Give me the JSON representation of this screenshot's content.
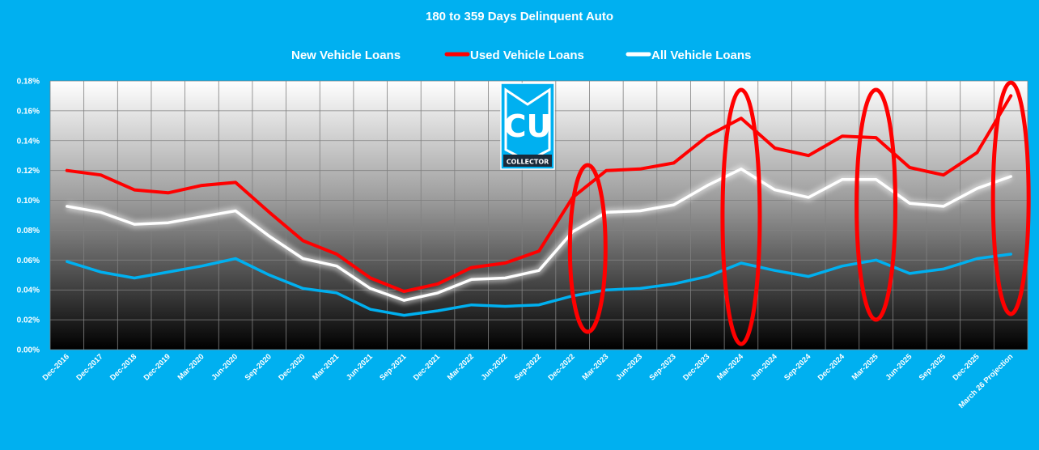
{
  "chart_data": {
    "type": "line",
    "title": "180 to 359 Days Delinquent Auto",
    "categories": [
      "Dec-2016",
      "Dec-2017",
      "Dec-2018",
      "Dec-2019",
      "Mar-2020",
      "Jun-2020",
      "Sep-2020",
      "Dec-2020",
      "Mar-2021",
      "Jun-2021",
      "Sep-2021",
      "Dec-2021",
      "Mar-2022",
      "Jun-2022",
      "Sep-2022",
      "Dec-2022",
      "Mar-2023",
      "Jun-2023",
      "Sep-2023",
      "Dec-2023",
      "Mar-2024",
      "Jun-2024",
      "Sep-2024",
      "Dec-2024",
      "Mar-2025",
      "Jun-2025",
      "Sep-2025",
      "Dec-2025",
      "March 26 Projection"
    ],
    "series": [
      {
        "name": "New Vehicle Loans",
        "color": "#00b0f0",
        "values": [
          0.059,
          0.052,
          0.048,
          0.052,
          0.056,
          0.061,
          0.05,
          0.041,
          0.038,
          0.027,
          0.023,
          0.026,
          0.03,
          0.029,
          0.03,
          0.036,
          0.04,
          0.041,
          0.044,
          0.049,
          0.058,
          0.053,
          0.049,
          0.056,
          0.06,
          0.051,
          0.054,
          0.061,
          0.064
        ]
      },
      {
        "name": "Used Vehicle Loans",
        "color": "#ff0000",
        "values": [
          0.12,
          0.117,
          0.107,
          0.105,
          0.11,
          0.112,
          0.092,
          0.073,
          0.064,
          0.048,
          0.039,
          0.044,
          0.055,
          0.058,
          0.066,
          0.102,
          0.12,
          0.121,
          0.125,
          0.143,
          0.155,
          0.135,
          0.13,
          0.143,
          0.142,
          0.122,
          0.117,
          0.132,
          0.17
        ]
      },
      {
        "name": "All Vehicle Loans",
        "color": "#ffffff",
        "values": [
          0.096,
          0.092,
          0.084,
          0.085,
          0.089,
          0.093,
          0.076,
          0.061,
          0.056,
          0.041,
          0.033,
          0.038,
          0.047,
          0.048,
          0.053,
          0.079,
          0.092,
          0.093,
          0.097,
          0.11,
          0.121,
          0.107,
          0.102,
          0.114,
          0.114,
          0.098,
          0.096,
          0.108,
          0.116
        ]
      }
    ],
    "ylim": [
      0,
      0.18
    ],
    "yticks": [
      0,
      0.02,
      0.04,
      0.06,
      0.08,
      0.1,
      0.12,
      0.14,
      0.16,
      0.18
    ],
    "ytick_labels": [
      "0.00%",
      "0.02%",
      "0.04%",
      "0.06%",
      "0.08%",
      "0.10%",
      "0.12%",
      "0.14%",
      "0.16%",
      "0.18%"
    ],
    "grid": true,
    "legend_position": "top-center",
    "highlight_categories": [
      "Mar-2023",
      "Mar-2024",
      "Mar-2025",
      "March 26 Projection"
    ],
    "highlight_color": "#ff0000"
  },
  "logo": {
    "letters": "CU",
    "text": "COLLECTOR",
    "bg_color": "#00b0f0",
    "icon": "cu-collector-shield-icon"
  }
}
